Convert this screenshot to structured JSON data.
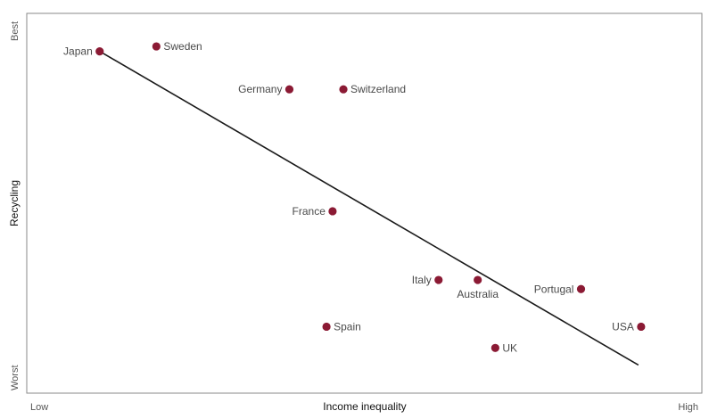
{
  "chart_data": {
    "type": "scatter",
    "xlabel": "Income inequality",
    "ylabel": "Recycling",
    "x_tick_labels": {
      "low": "Low",
      "high": "High"
    },
    "y_tick_labels": {
      "low": "Worst",
      "high": "Best"
    },
    "xlim": [
      0,
      100
    ],
    "ylim": [
      0,
      100
    ],
    "grid": false,
    "legend": "none",
    "marker_color": "#8b1a34",
    "trendline_color": "#1a1a1a",
    "points": [
      {
        "label": "Japan",
        "x": 10.8,
        "y": 90.0,
        "label_side": "left"
      },
      {
        "label": "Sweden",
        "x": 19.2,
        "y": 91.3,
        "label_side": "right"
      },
      {
        "label": "Germany",
        "x": 38.9,
        "y": 80.0,
        "label_side": "left"
      },
      {
        "label": "Switzerland",
        "x": 46.9,
        "y": 80.0,
        "label_side": "right"
      },
      {
        "label": "France",
        "x": 45.3,
        "y": 47.9,
        "label_side": "left"
      },
      {
        "label": "Italy",
        "x": 61.0,
        "y": 29.8,
        "label_side": "left"
      },
      {
        "label": "Australia",
        "x": 66.8,
        "y": 29.8,
        "label_side": "below"
      },
      {
        "label": "Portugal",
        "x": 82.1,
        "y": 27.4,
        "label_side": "left"
      },
      {
        "label": "USA",
        "x": 91.0,
        "y": 17.5,
        "label_side": "left"
      },
      {
        "label": "Spain",
        "x": 44.4,
        "y": 17.5,
        "label_side": "right"
      },
      {
        "label": "UK",
        "x": 69.4,
        "y": 11.9,
        "label_side": "right"
      }
    ],
    "trendline": {
      "x": [
        10.8,
        90.6
      ],
      "y": [
        90.0,
        7.4
      ]
    }
  }
}
